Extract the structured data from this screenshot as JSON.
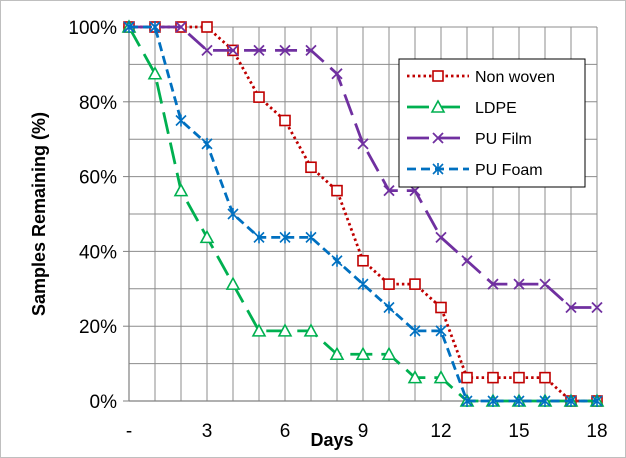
{
  "chart_data": {
    "type": "line",
    "xlabel": "Days",
    "ylabel": "Samples Remaining (%)",
    "xlim": [
      0,
      18
    ],
    "ylim": [
      0,
      100
    ],
    "x_tick_labels": [
      {
        "x": 0,
        "label": "-"
      },
      {
        "x": 3,
        "label": "3"
      },
      {
        "x": 6,
        "label": "6"
      },
      {
        "x": 9,
        "label": "9"
      },
      {
        "x": 12,
        "label": "12"
      },
      {
        "x": 15,
        "label": "15"
      },
      {
        "x": 18,
        "label": "18"
      }
    ],
    "y_ticks": [
      {
        "y": 0,
        "label": "0%"
      },
      {
        "y": 20,
        "label": "20%"
      },
      {
        "y": 40,
        "label": "40%"
      },
      {
        "y": 60,
        "label": "60%"
      },
      {
        "y": 80,
        "label": "80%"
      },
      {
        "y": 100,
        "label": "100%"
      }
    ],
    "y_grid": [
      10,
      20,
      30,
      40,
      50,
      60,
      70,
      80,
      90,
      100
    ],
    "x_grid": [
      1,
      2,
      3,
      4,
      5,
      6,
      7,
      8,
      9,
      10,
      11,
      12,
      13,
      14,
      15,
      16,
      17,
      18
    ],
    "grid": true,
    "legend_position": "top-right",
    "x": [
      0,
      1,
      2,
      3,
      4,
      5,
      6,
      7,
      8,
      9,
      10,
      11,
      12,
      13,
      14,
      15,
      16,
      17,
      18
    ],
    "series": [
      {
        "name": "Non woven",
        "color": "#c00000",
        "dash": "dotted",
        "marker": "square",
        "values": [
          100,
          100,
          100,
          100,
          93.75,
          81.25,
          75,
          62.5,
          56.25,
          37.5,
          31.25,
          31.25,
          25,
          6.25,
          6.25,
          6.25,
          6.25,
          0,
          0
        ]
      },
      {
        "name": "LDPE",
        "color": "#00b050",
        "dash": "longdash",
        "marker": "triangle",
        "values": [
          100,
          87.5,
          56.25,
          43.75,
          31.25,
          18.75,
          18.75,
          18.75,
          12.5,
          12.5,
          12.5,
          6.25,
          6.25,
          0,
          0,
          0,
          0,
          0,
          0
        ]
      },
      {
        "name": "PU Film",
        "color": "#7030a0",
        "dash": "longdash",
        "marker": "x",
        "values": [
          100,
          100,
          100,
          93.75,
          93.75,
          93.75,
          93.75,
          93.75,
          87.5,
          68.75,
          56.25,
          56.25,
          43.75,
          37.5,
          31.25,
          31.25,
          31.25,
          25,
          25
        ]
      },
      {
        "name": "PU Foam",
        "color": "#0070c0",
        "dash": "dashed",
        "marker": "asterisk",
        "values": [
          100,
          100,
          75,
          68.75,
          50,
          43.75,
          43.75,
          43.75,
          37.5,
          31.25,
          25,
          18.75,
          18.75,
          0,
          0,
          0,
          0,
          0,
          0
        ]
      }
    ]
  }
}
